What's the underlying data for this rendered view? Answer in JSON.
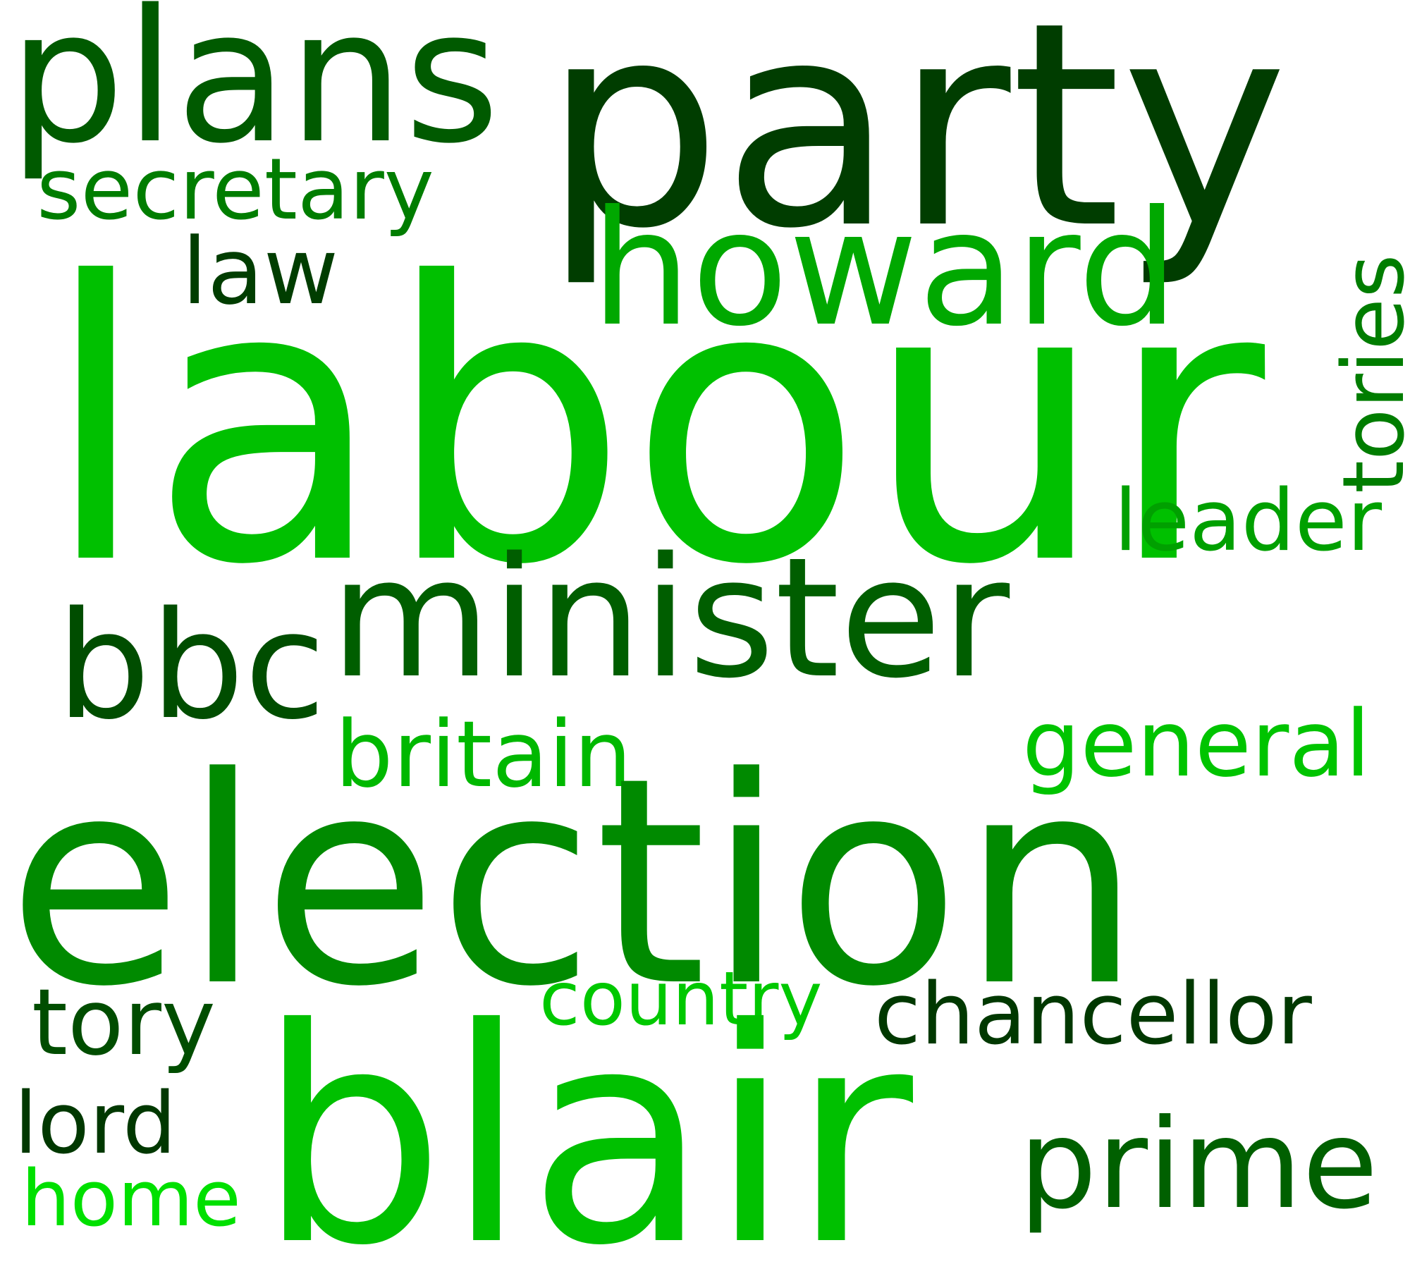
{
  "words": {
    "party": {
      "text": "party",
      "color": "#003d00"
    },
    "plans": {
      "text": "plans",
      "color": "#005a00"
    },
    "secretary": {
      "text": "secretary",
      "color": "#007d00"
    },
    "law": {
      "text": "law",
      "color": "#003d00"
    },
    "howard": {
      "text": "howard",
      "color": "#00a800"
    },
    "tories": {
      "text": "tories",
      "color": "#007d00"
    },
    "labour": {
      "text": "labour",
      "color": "#00c000"
    },
    "leader": {
      "text": "leader",
      "color": "#00a000"
    },
    "bbc": {
      "text": "bbc",
      "color": "#004d00"
    },
    "minister": {
      "text": "minister",
      "color": "#005e00"
    },
    "britain": {
      "text": "britain",
      "color": "#00b800"
    },
    "general": {
      "text": "general",
      "color": "#00c400"
    },
    "election": {
      "text": "election",
      "color": "#008a00"
    },
    "tory": {
      "text": "tory",
      "color": "#004d00"
    },
    "country": {
      "text": "country",
      "color": "#00c800"
    },
    "chancellor": {
      "text": "chancellor",
      "color": "#003800"
    },
    "blair": {
      "text": "blair",
      "color": "#00c000"
    },
    "lord": {
      "text": "lord",
      "color": "#003800"
    },
    "prime": {
      "text": "prime",
      "color": "#006000"
    },
    "home": {
      "text": "home",
      "color": "#00e000"
    }
  }
}
